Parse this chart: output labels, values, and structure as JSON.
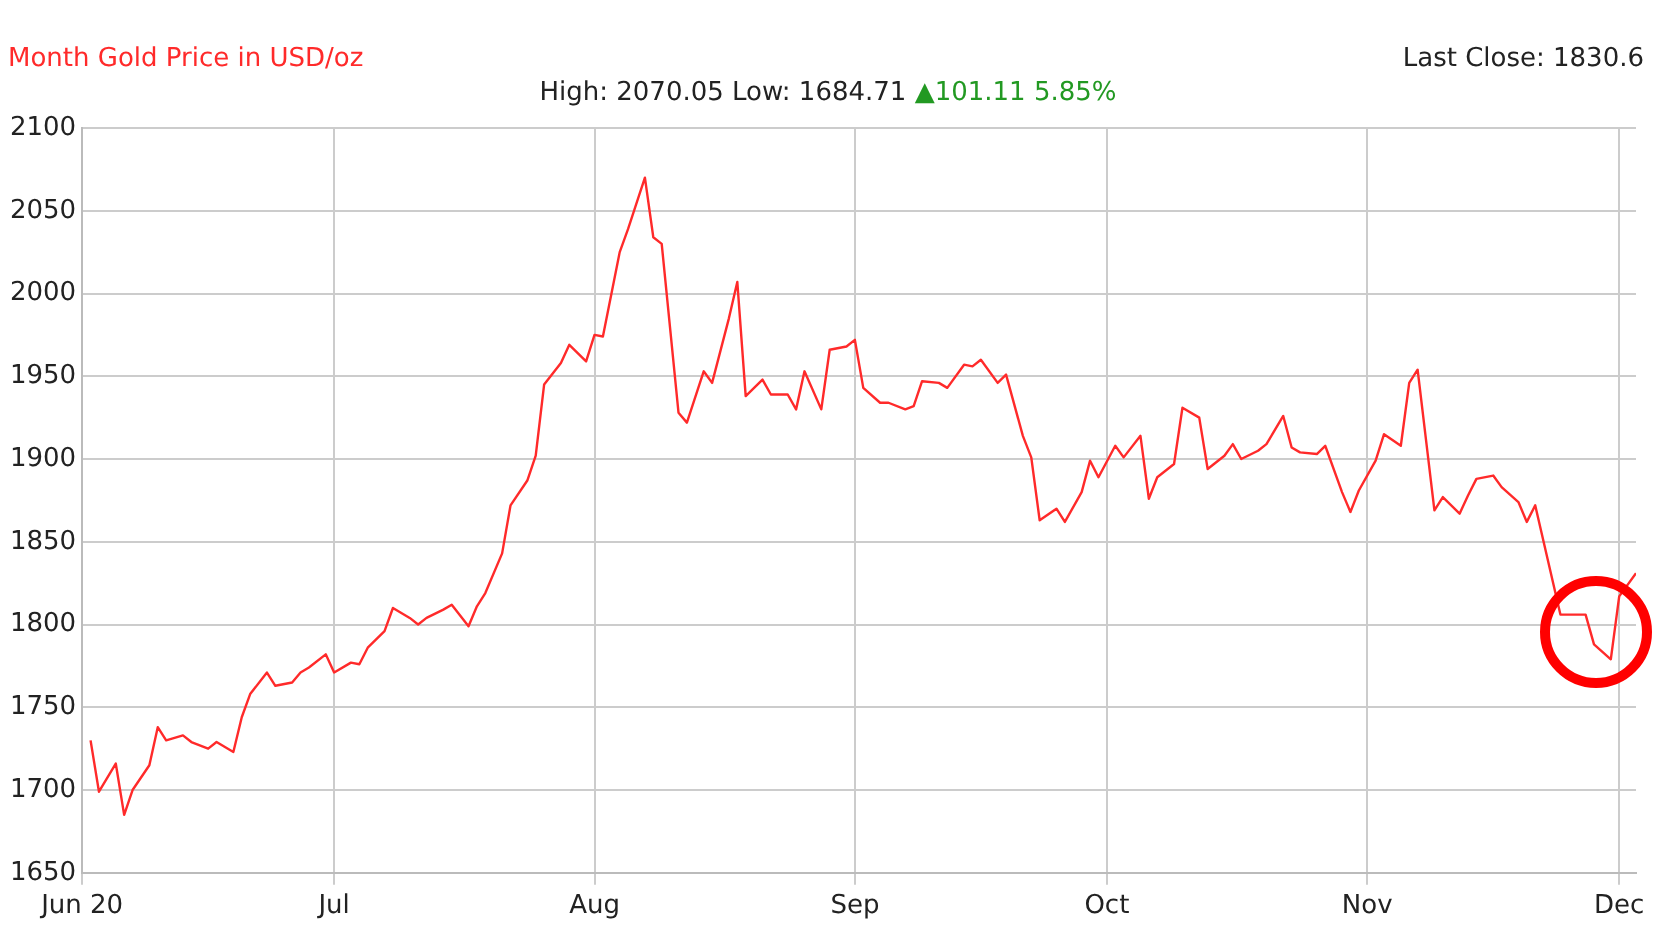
{
  "chart_data": {
    "type": "line",
    "title": "Month Gold Price in USD/oz",
    "subtitle": "High: 2070.05 Low: 1684.71",
    "annotations": [
      "▲101.11 5.85%",
      "Last Close: 1830.6"
    ],
    "x": [
      "2020-06-02",
      "2020-06-03",
      "2020-06-05",
      "2020-06-06",
      "2020-06-07",
      "2020-06-09",
      "2020-06-10",
      "2020-06-11",
      "2020-06-13",
      "2020-06-14",
      "2020-06-16",
      "2020-06-17",
      "2020-06-19",
      "2020-06-20",
      "2020-06-21",
      "2020-06-23",
      "2020-06-24",
      "2020-06-26",
      "2020-06-27",
      "2020-06-28",
      "2020-06-30",
      "2020-07-01",
      "2020-07-03",
      "2020-07-04",
      "2020-07-05",
      "2020-07-07",
      "2020-07-08",
      "2020-07-10",
      "2020-07-11",
      "2020-07-12",
      "2020-07-14",
      "2020-07-15",
      "2020-07-17",
      "2020-07-18",
      "2020-07-19",
      "2020-07-21",
      "2020-07-22",
      "2020-07-24",
      "2020-07-25",
      "2020-07-26",
      "2020-07-28",
      "2020-07-29",
      "2020-07-31",
      "2020-08-01",
      "2020-08-02",
      "2020-08-04",
      "2020-08-05",
      "2020-08-07",
      "2020-08-08",
      "2020-08-09",
      "2020-08-11",
      "2020-08-12",
      "2020-08-14",
      "2020-08-15",
      "2020-08-17",
      "2020-08-18",
      "2020-08-19",
      "2020-08-21",
      "2020-08-22",
      "2020-08-24",
      "2020-08-25",
      "2020-08-26",
      "2020-08-28",
      "2020-08-29",
      "2020-08-31",
      "2020-09-01",
      "2020-09-02",
      "2020-09-04",
      "2020-09-05",
      "2020-09-07",
      "2020-09-08",
      "2020-09-09",
      "2020-09-11",
      "2020-09-12",
      "2020-09-14",
      "2020-09-15",
      "2020-09-16",
      "2020-09-18",
      "2020-09-19",
      "2020-09-21",
      "2020-09-22",
      "2020-09-23",
      "2020-09-25",
      "2020-09-26",
      "2020-09-28",
      "2020-09-29",
      "2020-09-30",
      "2020-10-02",
      "2020-10-03",
      "2020-10-05",
      "2020-10-06",
      "2020-10-07",
      "2020-10-09",
      "2020-10-10",
      "2020-10-12",
      "2020-10-13",
      "2020-10-15",
      "2020-10-16",
      "2020-10-17",
      "2020-10-19",
      "2020-10-20",
      "2020-10-22",
      "2020-10-23",
      "2020-10-24",
      "2020-10-26",
      "2020-10-27",
      "2020-10-29",
      "2020-10-30",
      "2020-10-31",
      "2020-11-02",
      "2020-11-03",
      "2020-11-05",
      "2020-11-06",
      "2020-11-07",
      "2020-11-09",
      "2020-11-10",
      "2020-11-12",
      "2020-11-13",
      "2020-11-14",
      "2020-11-16",
      "2020-11-17",
      "2020-11-19",
      "2020-11-20",
      "2020-11-21",
      "2020-11-24",
      "2020-11-27",
      "2020-11-28",
      "2020-11-30",
      "2020-12-01",
      "2020-12-03"
    ],
    "series": [
      {
        "color": "#ff2a2a",
        "values": [
          1730,
          1699,
          1716,
          1685,
          1700,
          1715,
          1738,
          1730,
          1733,
          1729,
          1725,
          1729,
          1723,
          1744,
          1758,
          1771,
          1763,
          1765,
          1771,
          1774,
          1782,
          1771,
          1777,
          1776,
          1786,
          1796,
          1810,
          1804,
          1800,
          1804,
          1809,
          1812,
          1799,
          1811,
          1819,
          1843,
          1872,
          1887,
          1902,
          1945,
          1958,
          1969,
          1959,
          1975,
          1974,
          2025,
          2039,
          2070,
          2034,
          2030,
          1928,
          1922,
          1953,
          1946,
          1985,
          2007,
          1938,
          1948,
          1939,
          1939,
          1930,
          1953,
          1930,
          1966,
          1968,
          1972,
          1943,
          1934,
          1934,
          1930,
          1932,
          1947,
          1946,
          1943,
          1957,
          1956,
          1960,
          1946,
          1951,
          1914,
          1901,
          1863,
          1870,
          1862,
          1880,
          1899,
          1889,
          1908,
          1901,
          1914,
          1876,
          1889,
          1897,
          1931,
          1925,
          1894,
          1902,
          1909,
          1900,
          1905,
          1909,
          1926,
          1907,
          1904,
          1903,
          1908,
          1880,
          1868,
          1881,
          1899,
          1915,
          1908,
          1946,
          1954,
          1869,
          1877,
          1867,
          1878,
          1888,
          1890,
          1883,
          1874,
          1862,
          1872,
          1806,
          1806,
          1788,
          1779,
          1817,
          1831
        ]
      }
    ],
    "xlim": [
      "2020-06-01",
      "2020-12-03"
    ],
    "xticks": [
      {
        "value": "2020-06-01",
        "label": "Jun 20"
      },
      {
        "value": "2020-07-01",
        "label": "Jul"
      },
      {
        "value": "2020-08-01",
        "label": "Aug"
      },
      {
        "value": "2020-09-01",
        "label": "Sep"
      },
      {
        "value": "2020-10-01",
        "label": "Oct"
      },
      {
        "value": "2020-11-01",
        "label": "Nov"
      },
      {
        "value": "2020-12-01",
        "label": "Dec"
      }
    ],
    "ylim": [
      1650,
      2100
    ],
    "yticks": [
      1650,
      1700,
      1750,
      1800,
      1850,
      1900,
      1950,
      2000,
      2050,
      2100
    ],
    "grid": true,
    "legend": false,
    "marker": "none",
    "line_style": "solid"
  }
}
